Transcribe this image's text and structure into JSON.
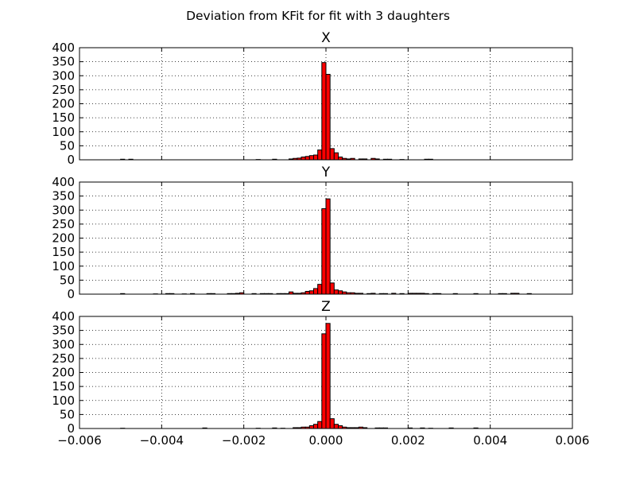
{
  "figure": {
    "title": "Deviation from KFit for fit with 3 daughters"
  },
  "chart_data": [
    {
      "type": "bar",
      "title": "X",
      "xlabel": "",
      "ylabel": "",
      "xlim": [
        -0.006,
        0.006
      ],
      "ylim": [
        0,
        400
      ],
      "grid": true,
      "bar_color": "#ff0000",
      "yticks": [
        0,
        50,
        100,
        150,
        200,
        250,
        300,
        350,
        400
      ],
      "xticks": [
        -0.006,
        -0.004,
        -0.002,
        0.0,
        0.002,
        0.004,
        0.006
      ],
      "xtick_labels": [],
      "bin_width": 0.0001,
      "bins": [
        [
          -0.005,
          2
        ],
        [
          -0.0048,
          2
        ],
        [
          -0.0017,
          1
        ],
        [
          -0.0013,
          2
        ],
        [
          -0.0009,
          3
        ],
        [
          -0.0008,
          5
        ],
        [
          -0.0007,
          6
        ],
        [
          -0.0006,
          10
        ],
        [
          -0.0005,
          12
        ],
        [
          -0.0004,
          15
        ],
        [
          -0.0003,
          17
        ],
        [
          -0.0002,
          35
        ],
        [
          -0.0001,
          347
        ],
        [
          0.0,
          305
        ],
        [
          0.0001,
          40
        ],
        [
          0.0002,
          25
        ],
        [
          0.0003,
          10
        ],
        [
          0.0004,
          5
        ],
        [
          0.0005,
          3
        ],
        [
          0.0006,
          5
        ],
        [
          0.0008,
          3
        ],
        [
          0.0009,
          3
        ],
        [
          0.0011,
          5
        ],
        [
          0.0012,
          3
        ],
        [
          0.0014,
          2
        ],
        [
          0.0015,
          2
        ],
        [
          0.0018,
          1
        ],
        [
          0.0024,
          2
        ],
        [
          0.0025,
          2
        ]
      ]
    },
    {
      "type": "bar",
      "title": "Y",
      "xlabel": "",
      "ylabel": "",
      "xlim": [
        -0.006,
        0.006
      ],
      "ylim": [
        0,
        400
      ],
      "grid": true,
      "bar_color": "#ff0000",
      "yticks": [
        0,
        50,
        100,
        150,
        200,
        250,
        300,
        350,
        400
      ],
      "xticks": [
        -0.006,
        -0.004,
        -0.002,
        0.0,
        0.002,
        0.004,
        0.006
      ],
      "xtick_labels": [],
      "bin_width": 0.0001,
      "bins": [
        [
          -0.005,
          2
        ],
        [
          -0.0042,
          1
        ],
        [
          -0.0039,
          2
        ],
        [
          -0.0038,
          2
        ],
        [
          -0.0035,
          1
        ],
        [
          -0.0033,
          2
        ],
        [
          -0.0029,
          2
        ],
        [
          -0.0028,
          2
        ],
        [
          -0.0024,
          2
        ],
        [
          -0.0023,
          2
        ],
        [
          -0.0022,
          3
        ],
        [
          -0.0021,
          5
        ],
        [
          -0.0018,
          2
        ],
        [
          -0.0016,
          2
        ],
        [
          -0.0015,
          2
        ],
        [
          -0.0014,
          2
        ],
        [
          -0.0012,
          2
        ],
        [
          -0.0011,
          2
        ],
        [
          -0.001,
          2
        ],
        [
          -0.0009,
          8
        ],
        [
          -0.0008,
          3
        ],
        [
          -0.0007,
          3
        ],
        [
          -0.0006,
          5
        ],
        [
          -0.0005,
          10
        ],
        [
          -0.0004,
          12
        ],
        [
          -0.0003,
          20
        ],
        [
          -0.0002,
          35
        ],
        [
          -0.0001,
          305
        ],
        [
          0.0,
          340
        ],
        [
          0.0001,
          40
        ],
        [
          0.0002,
          15
        ],
        [
          0.0003,
          12
        ],
        [
          0.0004,
          8
        ],
        [
          0.0005,
          5
        ],
        [
          0.0006,
          5
        ],
        [
          0.0007,
          3
        ],
        [
          0.0008,
          3
        ],
        [
          0.001,
          2
        ],
        [
          0.0011,
          3
        ],
        [
          0.0013,
          2
        ],
        [
          0.0014,
          2
        ],
        [
          0.0016,
          3
        ],
        [
          0.0018,
          2
        ],
        [
          0.002,
          3
        ],
        [
          0.0021,
          3
        ],
        [
          0.0022,
          3
        ],
        [
          0.0023,
          3
        ],
        [
          0.0024,
          2
        ],
        [
          0.0026,
          2
        ],
        [
          0.0027,
          2
        ],
        [
          0.0031,
          2
        ],
        [
          0.0036,
          2
        ],
        [
          0.0042,
          2
        ],
        [
          0.0043,
          2
        ],
        [
          0.0045,
          3
        ],
        [
          0.0046,
          3
        ],
        [
          0.0049,
          2
        ]
      ]
    },
    {
      "type": "bar",
      "title": "Z",
      "xlabel": "",
      "ylabel": "",
      "xlim": [
        -0.006,
        0.006
      ],
      "ylim": [
        0,
        400
      ],
      "grid": true,
      "bar_color": "#ff0000",
      "yticks": [
        0,
        50,
        100,
        150,
        200,
        250,
        300,
        350,
        400
      ],
      "xticks": [
        -0.006,
        -0.004,
        -0.002,
        0.0,
        0.002,
        0.004,
        0.006
      ],
      "xtick_labels": [
        "−0.006",
        "−0.004",
        "−0.002",
        "0.000",
        "0.002",
        "0.004",
        "0.006"
      ],
      "bin_width": 0.0001,
      "bins": [
        [
          -0.005,
          1
        ],
        [
          -0.003,
          2
        ],
        [
          -0.0017,
          1
        ],
        [
          -0.0013,
          2
        ],
        [
          -0.0011,
          1
        ],
        [
          -0.0008,
          3
        ],
        [
          -0.0007,
          3
        ],
        [
          -0.0006,
          5
        ],
        [
          -0.0005,
          5
        ],
        [
          -0.0004,
          10
        ],
        [
          -0.0003,
          15
        ],
        [
          -0.0002,
          25
        ],
        [
          -0.0001,
          338
        ],
        [
          0.0,
          375
        ],
        [
          0.0001,
          35
        ],
        [
          0.0002,
          15
        ],
        [
          0.0003,
          10
        ],
        [
          0.0004,
          5
        ],
        [
          0.0005,
          3
        ],
        [
          0.0006,
          3
        ],
        [
          0.0007,
          3
        ],
        [
          0.0008,
          5
        ],
        [
          0.0009,
          3
        ],
        [
          0.0012,
          2
        ],
        [
          0.0013,
          2
        ],
        [
          0.0014,
          2
        ],
        [
          0.002,
          2
        ],
        [
          0.0023,
          2
        ],
        [
          0.0025,
          1
        ],
        [
          0.003,
          2
        ],
        [
          0.0036,
          2
        ]
      ]
    }
  ]
}
